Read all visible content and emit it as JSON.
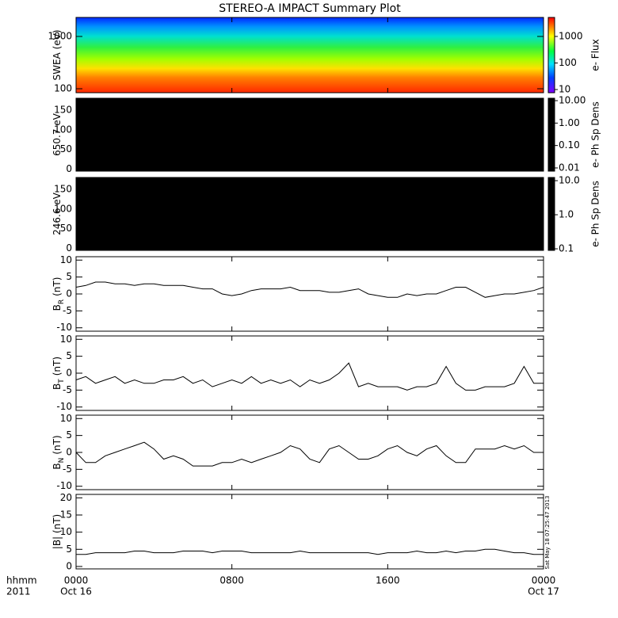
{
  "title": "STEREO-A IMPACT Summary Plot",
  "timestamp": "Sat May 18 07:25:47 2013",
  "x_axis": {
    "xlim": [
      0,
      24
    ],
    "xticks": [
      {
        "value": 0,
        "label": "0000"
      },
      {
        "value": 8,
        "label": "0800"
      },
      {
        "value": 16,
        "label": "1600"
      },
      {
        "value": 24,
        "label": "0000"
      }
    ],
    "date_ticks": [
      {
        "value": 0,
        "label": "Oct 16"
      },
      {
        "value": 24,
        "label": "Oct 17"
      }
    ],
    "row_labels": [
      "hhmm",
      "2011"
    ]
  },
  "chart_data": [
    {
      "type": "spectrogram",
      "ylabel": [
        "SWEA (eV)"
      ],
      "ylim": [
        84,
        2310
      ],
      "log": true,
      "yticks": [
        100,
        1000
      ],
      "colorbar": {
        "label": "e- Flux",
        "lim": [
          7.6,
          5200
        ],
        "log": true,
        "ticks": [
          10,
          100,
          1000
        ],
        "palette": "rainbow"
      }
    },
    {
      "type": "pitch",
      "ylabel": [
        "650.7 eV"
      ],
      "ylim": [
        -5,
        180
      ],
      "yticks": [
        0,
        50,
        100,
        150
      ],
      "colorbar": {
        "label": "e- Ph Sp Dens",
        "lim": [
          0.0072,
          12.8
        ],
        "log": true,
        "palette": "black",
        "ticks": [
          {
            "value": 10,
            "label": "10.00"
          },
          {
            "value": 1,
            "label": "1.00"
          },
          {
            "value": 0.1,
            "label": "0.10"
          },
          {
            "value": 0.01,
            "label": "0.01"
          }
        ]
      }
    },
    {
      "type": "pitch",
      "ylabel": [
        "246.6 eV"
      ],
      "ylim": [
        -5,
        180
      ],
      "yticks": [
        0,
        50,
        100,
        150
      ],
      "colorbar": {
        "label": "e- Ph Sp Dens",
        "lim": [
          0.09,
          12.4
        ],
        "log": true,
        "palette": "black",
        "ticks": [
          {
            "value": 10,
            "label": "10.0"
          },
          {
            "value": 1,
            "label": "1.0"
          },
          {
            "value": 0.1,
            "label": "0.1"
          }
        ]
      }
    },
    {
      "type": "line",
      "ylabel": [
        "B",
        "R",
        "(nT)"
      ],
      "ylim": [
        -11,
        11
      ],
      "yticks": [
        -10,
        -5,
        0,
        5,
        10
      ],
      "color": "#000000",
      "x": [
        0,
        0.5,
        1,
        1.5,
        2,
        2.5,
        3,
        3.5,
        4,
        4.5,
        5,
        5.5,
        6,
        6.5,
        7,
        7.5,
        8,
        8.5,
        9,
        9.5,
        10,
        10.5,
        11,
        11.5,
        12,
        12.5,
        13,
        13.5,
        14,
        14.5,
        15,
        15.5,
        16,
        16.5,
        17,
        17.5,
        18,
        18.5,
        19,
        19.5,
        20,
        20.5,
        21,
        21.5,
        22,
        22.5,
        23,
        23.5,
        24
      ],
      "values": [
        2,
        2.5,
        3.5,
        3.5,
        3,
        3,
        2.5,
        3,
        3,
        2.5,
        2.5,
        2.5,
        2,
        1.5,
        1.5,
        0,
        -0.5,
        0,
        1,
        1.5,
        1.5,
        1.5,
        2,
        1,
        1,
        1,
        0.5,
        0.5,
        1,
        1.5,
        0,
        -0.5,
        -1,
        -1,
        0,
        -0.5,
        0,
        0,
        1,
        2,
        2,
        0.5,
        -1,
        -0.5,
        0,
        0,
        0.5,
        1,
        2
      ]
    },
    {
      "type": "line",
      "ylabel": [
        "B",
        "T",
        "(nT)"
      ],
      "ylim": [
        -11,
        11
      ],
      "yticks": [
        -10,
        -5,
        0,
        5,
        10
      ],
      "color": "#000000",
      "x": [
        0,
        0.5,
        1,
        1.5,
        2,
        2.5,
        3,
        3.5,
        4,
        4.5,
        5,
        5.5,
        6,
        6.5,
        7,
        7.5,
        8,
        8.5,
        9,
        9.5,
        10,
        10.5,
        11,
        11.5,
        12,
        12.5,
        13,
        13.5,
        14,
        14.5,
        15,
        15.5,
        16,
        16.5,
        17,
        17.5,
        18,
        18.5,
        19,
        19.5,
        20,
        20.5,
        21,
        21.5,
        22,
        22.5,
        23,
        23.5,
        24
      ],
      "values": [
        -2,
        -1,
        -3,
        -2,
        -1,
        -3,
        -2,
        -3,
        -3,
        -2,
        -2,
        -1,
        -3,
        -2,
        -4,
        -3,
        -2,
        -3,
        -1,
        -3,
        -2,
        -3,
        -2,
        -4,
        -2,
        -3,
        -2,
        0,
        3,
        -4,
        -3,
        -4,
        -4,
        -4,
        -5,
        -4,
        -4,
        -3,
        2,
        -3,
        -5,
        -5,
        -4,
        -4,
        -4,
        -3,
        2,
        -3,
        -3
      ]
    },
    {
      "type": "line",
      "ylabel": [
        "B",
        "N",
        "(nT)"
      ],
      "ylim": [
        -11,
        11
      ],
      "yticks": [
        -10,
        -5,
        0,
        5,
        10
      ],
      "color": "#000000",
      "x": [
        0,
        0.5,
        1,
        1.5,
        2,
        2.5,
        3,
        3.5,
        4,
        4.5,
        5,
        5.5,
        6,
        6.5,
        7,
        7.5,
        8,
        8.5,
        9,
        9.5,
        10,
        10.5,
        11,
        11.5,
        12,
        12.5,
        13,
        13.5,
        14,
        14.5,
        15,
        15.5,
        16,
        16.5,
        17,
        17.5,
        18,
        18.5,
        19,
        19.5,
        20,
        20.5,
        21,
        21.5,
        22,
        22.5,
        23,
        23.5,
        24
      ],
      "values": [
        0,
        -3,
        -3,
        -1,
        0,
        1,
        2,
        3,
        1,
        -2,
        -1,
        -2,
        -4,
        -4,
        -4,
        -3,
        -3,
        -2,
        -3,
        -2,
        -1,
        0,
        2,
        1,
        -2,
        -3,
        1,
        2,
        0,
        -2,
        -2,
        -1,
        1,
        2,
        0,
        -1,
        1,
        2,
        -1,
        -3,
        -3,
        1,
        1,
        1,
        2,
        1,
        2,
        0,
        0
      ]
    },
    {
      "type": "line",
      "ylabel": [
        "|B| (nT)"
      ],
      "ylim": [
        -0.7,
        21
      ],
      "yticks": [
        0,
        5,
        10,
        15,
        20
      ],
      "color": "#000000",
      "x": [
        0,
        0.5,
        1,
        1.5,
        2,
        2.5,
        3,
        3.5,
        4,
        4.5,
        5,
        5.5,
        6,
        6.5,
        7,
        7.5,
        8,
        8.5,
        9,
        9.5,
        10,
        10.5,
        11,
        11.5,
        12,
        12.5,
        13,
        13.5,
        14,
        14.5,
        15,
        15.5,
        16,
        16.5,
        17,
        17.5,
        18,
        18.5,
        19,
        19.5,
        20,
        20.5,
        21,
        21.5,
        22,
        22.5,
        23,
        23.5,
        24
      ],
      "values": [
        3.5,
        3.5,
        4,
        4,
        4,
        4,
        4.5,
        4.5,
        4,
        4,
        4,
        4.5,
        4.5,
        4.5,
        4,
        4.5,
        4.5,
        4.5,
        4,
        4,
        4,
        4,
        4,
        4.5,
        4,
        4,
        4,
        4,
        4,
        4,
        4,
        3.5,
        4,
        4,
        4,
        4.5,
        4,
        4,
        4.5,
        4,
        4.5,
        4.5,
        5,
        5,
        4.5,
        4,
        4,
        3.5,
        3.5
      ]
    }
  ]
}
